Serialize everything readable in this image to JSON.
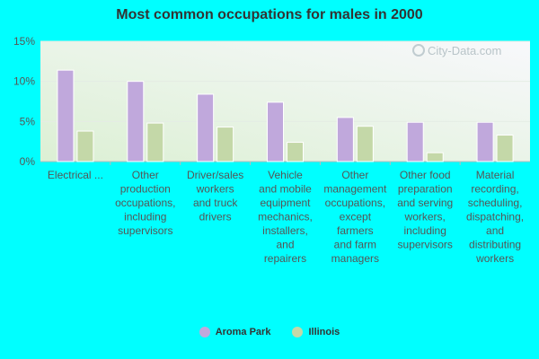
{
  "chart_data": {
    "type": "bar",
    "title": "Most common occupations for males in 2000",
    "categories": [
      "Electrical ...",
      "Other production occupations, including supervisors",
      "Driver/sales workers and truck drivers",
      "Vehicle and mobile equipment mechanics, installers, and repairers",
      "Other management occupations, except farmers and farm managers",
      "Other food preparation and serving workers, including supervisors",
      "Material recording, scheduling, dispatching, and distributing workers"
    ],
    "category_lines": [
      [
        "Electrical ..."
      ],
      [
        "Other",
        "production",
        "occupations,",
        "including",
        "supervisors"
      ],
      [
        "Driver/sales",
        "workers",
        "and truck",
        "drivers"
      ],
      [
        "Vehicle",
        "and mobile",
        "equipment",
        "mechanics,",
        "installers,",
        "and",
        "repairers"
      ],
      [
        "Other",
        "management",
        "occupations,",
        "except",
        "farmers",
        "and farm",
        "managers"
      ],
      [
        "Other food",
        "preparation",
        "and serving",
        "workers,",
        "including",
        "supervisors"
      ],
      [
        "Material",
        "recording,",
        "scheduling,",
        "dispatching,",
        "and",
        "distributing",
        "workers"
      ]
    ],
    "series": [
      {
        "name": "Aroma Park",
        "color": "#c0a8dc",
        "values": [
          11.4,
          10.0,
          8.4,
          7.4,
          5.5,
          4.9,
          4.9
        ]
      },
      {
        "name": "Illinois",
        "color": "#c4d8a8",
        "values": [
          3.8,
          4.8,
          4.3,
          2.4,
          4.4,
          1.1,
          3.3
        ]
      }
    ],
    "y_ticks": [
      "0%",
      "5%",
      "10%",
      "15%"
    ],
    "ylim": [
      0,
      15
    ],
    "xlabel": "",
    "ylabel": "",
    "grid": true,
    "legend_position": "bottom"
  },
  "watermark": "City-Data.com"
}
